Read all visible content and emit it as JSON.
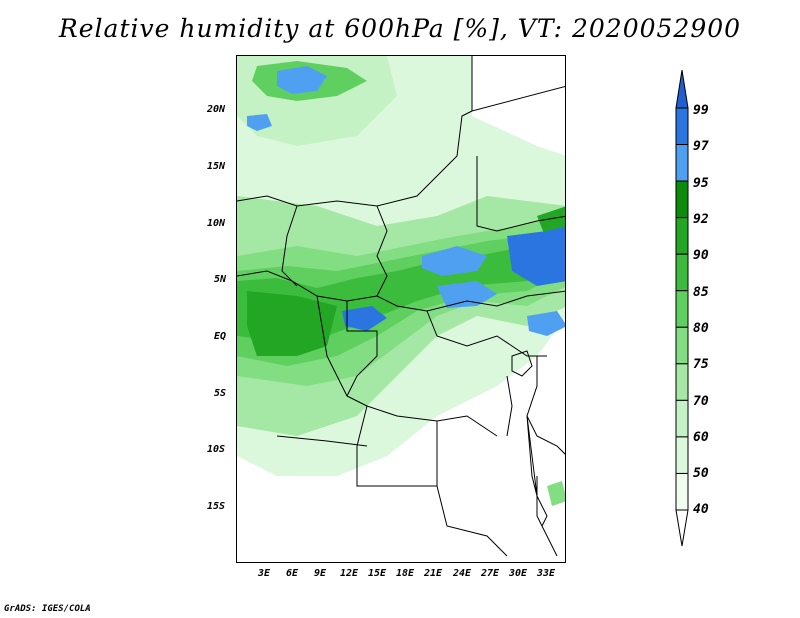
{
  "title": "Relative humidity at 600hPa [%], VT: 2020052900",
  "credit": "GrADS: IGES/COLA",
  "map": {
    "lon_labels": [
      "3E",
      "6E",
      "9E",
      "12E",
      "15E",
      "18E",
      "21E",
      "24E",
      "27E",
      "30E",
      "33E"
    ],
    "lat_labels": [
      "20N",
      "15N",
      "10N",
      "5N",
      "EQ",
      "5S",
      "10S",
      "15S"
    ]
  },
  "colorbar": {
    "labels": [
      "99",
      "97",
      "95",
      "92",
      "90",
      "85",
      "80",
      "75",
      "70",
      "60",
      "50",
      "40"
    ],
    "colors": [
      "#1f5fd0",
      "#2a75e0",
      "#4fa0f0",
      "#0a8c0a",
      "#23a623",
      "#3cbc3c",
      "#5fd05f",
      "#83de83",
      "#a5e8a5",
      "#c4f2c4",
      "#dcf8dc",
      "#f0fcf0"
    ]
  }
}
